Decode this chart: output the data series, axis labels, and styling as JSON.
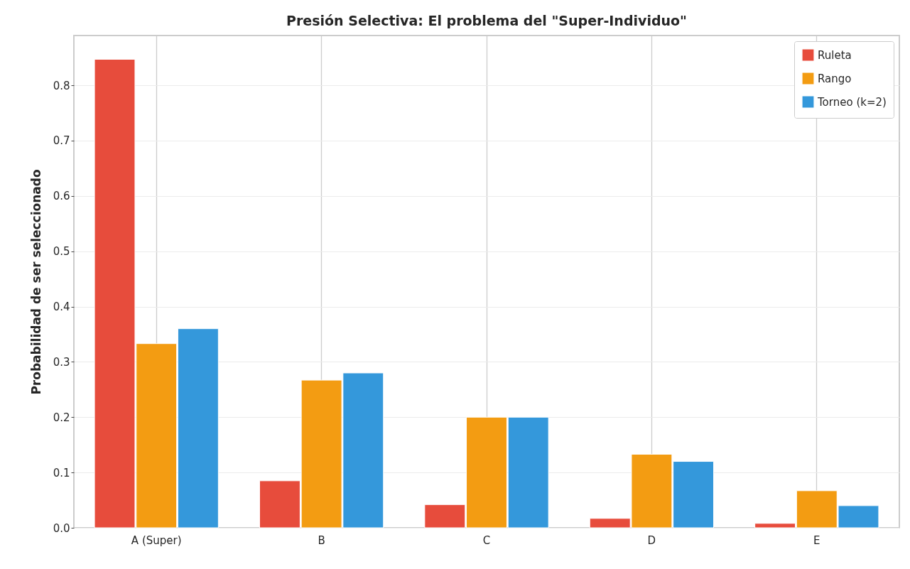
{
  "chart_data": {
    "type": "bar",
    "title": "Presión Selectiva: El problema del \"Super-Individuo\"",
    "ylabel": "Probabilidad de ser seleccionado",
    "categories": [
      "A (Super)",
      "B",
      "C",
      "D",
      "E"
    ],
    "series": [
      {
        "name": "Ruleta",
        "color": "#e74c3c",
        "values": [
          0.847,
          0.085,
          0.042,
          0.017,
          0.008
        ]
      },
      {
        "name": "Rango",
        "color": "#f39c12",
        "values": [
          0.333,
          0.267,
          0.2,
          0.133,
          0.067
        ]
      },
      {
        "name": "Torneo (k=2)",
        "color": "#3498db",
        "values": [
          0.36,
          0.28,
          0.2,
          0.12,
          0.04
        ]
      }
    ],
    "ylim": [
      0,
      0.89
    ],
    "yticks": [
      {
        "value": 0,
        "label": "0.0"
      },
      0.1,
      0.2,
      0.3,
      0.4,
      0.5,
      0.6,
      0.7,
      0.8
    ],
    "grid": true,
    "legend": "top right"
  }
}
